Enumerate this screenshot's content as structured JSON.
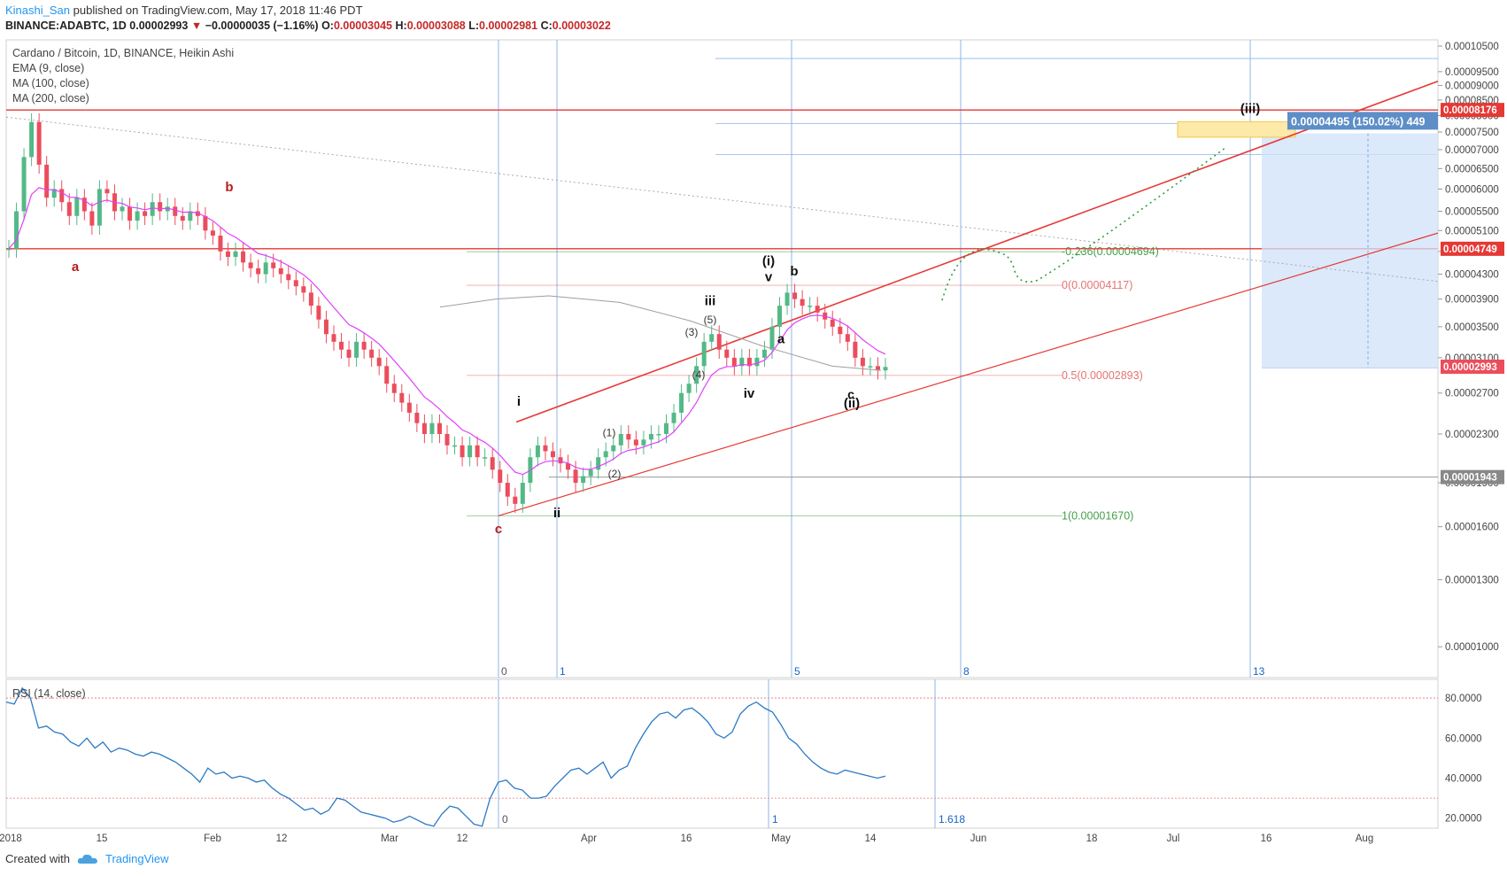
{
  "header": {
    "author": "Kinashi_San",
    "published": "published on TradingView.com, May 17, 2018 11:46 PDT",
    "symbol": "BINANCE:ADABTC, 1D",
    "last": "0.00002993",
    "arrow": "▼",
    "change": "−0.00000035 (−1.16%)",
    "o_label": "O:",
    "o_value": "0.00003045",
    "h_label": "H:",
    "h_value": "0.00003088",
    "l_label": "L:",
    "l_value": "0.00002981",
    "c_label": "C:",
    "c_value": "0.00003022"
  },
  "legend": {
    "title": "Cardano / Bitcoin, 1D, BINANCE, Heikin Ashi",
    "ema": "EMA (9, close)",
    "ma100": "MA (100, close)",
    "ma200": "MA (200, close)",
    "rsi": "RSI (14, close)"
  },
  "footer": {
    "created": "Created with",
    "brand": "TradingView"
  },
  "colors": {
    "up": "#53b987",
    "down": "#eb4d5c",
    "ema": "#e040fb",
    "ma": "#9e9e9e",
    "red_line": "#e53935",
    "blue_line": "#90b4e6",
    "rsi": "#2a7ac5",
    "fib_red": "#e57373",
    "fib_green": "#43a047"
  },
  "chart_data": [
    {
      "type": "candlestick",
      "style": "Heikin Ashi",
      "title": "Cardano / Bitcoin, 1D, BINANCE, Heikin Ashi",
      "ylim": [
        9.5e-06,
        0.000105
      ],
      "y_scale": "log",
      "y_ticks": [
        "0.00010500",
        "0.00009500",
        "0.00009000",
        "0.00008500",
        "0.00008000",
        "0.00007500",
        "0.00007000",
        "0.00006500",
        "0.00006000",
        "0.00005500",
        "0.00005100",
        "0.00004700",
        "0.00004300",
        "0.00003900",
        "0.00003500",
        "0.00003100",
        "0.00002700",
        "0.00002300",
        "0.00001900",
        "0.00001600",
        "0.00001300",
        "0.00001000"
      ],
      "x_ticks": [
        "2018",
        "15",
        "Feb",
        "12",
        "Mar",
        "12",
        "Apr",
        "16",
        "May",
        "14",
        "Jun",
        "18",
        "Jul",
        "16",
        "Aug"
      ],
      "price_badges": [
        {
          "label": "0.00008176",
          "value": 8.176e-05,
          "color": "#e53935"
        },
        {
          "label": "0.00004749",
          "value": 4.749e-05,
          "color": "#e53935"
        },
        {
          "label": "0.00002993",
          "value": 2.993e-05,
          "color": "#eb4d5c"
        },
        {
          "label": "0.00001943",
          "value": 1.943e-05,
          "color": "#888888"
        }
      ],
      "fib_levels": [
        {
          "label": "-0.236(0.00004694)",
          "value": 4.694e-05,
          "color": "#43a047"
        },
        {
          "label": "0(0.00004117)",
          "value": 4.117e-05,
          "color": "#e57373"
        },
        {
          "label": "0.5(0.00002893)",
          "value": 2.893e-05,
          "color": "#e57373"
        },
        {
          "label": "1(0.00001670)",
          "value": 1.67e-05,
          "color": "#43a047"
        }
      ],
      "fib_time": [
        "0",
        "1",
        "5",
        "8",
        "13"
      ],
      "target_label": "0.00004495 (150.02%) 449",
      "wave_labels": {
        "red": [
          "a",
          "b",
          "c"
        ],
        "black": [
          "i",
          "ii",
          "iii",
          "iv",
          "v",
          "(i)",
          "b",
          "a",
          "c",
          "(ii)",
          "(iii)"
        ],
        "minor": [
          "(1)",
          "(2)",
          "(3)",
          "(4)",
          "(5)"
        ]
      },
      "closes": [
        4.75e-05,
        5.5e-05,
        6.8e-05,
        7.8e-05,
        6.6e-05,
        5.8e-05,
        6e-05,
        5.7e-05,
        5.4e-05,
        5.8e-05,
        5.5e-05,
        5.2e-05,
        6e-05,
        5.9e-05,
        5.5e-05,
        5.6e-05,
        5.3e-05,
        5.5e-05,
        5.4e-05,
        5.7e-05,
        5.5e-05,
        5.6e-05,
        5.4e-05,
        5.3e-05,
        5.5e-05,
        5.4e-05,
        5.1e-05,
        5e-05,
        4.7e-05,
        4.6e-05,
        4.7e-05,
        4.5e-05,
        4.4e-05,
        4.3e-05,
        4.5e-05,
        4.4e-05,
        4.3e-05,
        4.2e-05,
        4.1e-05,
        4e-05,
        3.8e-05,
        3.6e-05,
        3.4e-05,
        3.3e-05,
        3.2e-05,
        3.1e-05,
        3.3e-05,
        3.2e-05,
        3.1e-05,
        3e-05,
        2.8e-05,
        2.7e-05,
        2.6e-05,
        2.5e-05,
        2.4e-05,
        2.3e-05,
        2.4e-05,
        2.3e-05,
        2.2e-05,
        2.2e-05,
        2.1e-05,
        2.2e-05,
        2.1e-05,
        2.1e-05,
        2e-05,
        1.9e-05,
        1.8e-05,
        1.75e-05,
        1.9e-05,
        2.1e-05,
        2.2e-05,
        2.15e-05,
        2.1e-05,
        2.05e-05,
        2e-05,
        1.9e-05,
        1.95e-05,
        2e-05,
        2.1e-05,
        2.15e-05,
        2.2e-05,
        2.3e-05,
        2.25e-05,
        2.2e-05,
        2.25e-05,
        2.3e-05,
        2.3e-05,
        2.4e-05,
        2.5e-05,
        2.7e-05,
        2.8e-05,
        3e-05,
        3.3e-05,
        3.4e-05,
        3.2e-05,
        3.1e-05,
        3e-05,
        3.1e-05,
        3e-05,
        3.1e-05,
        3.2e-05,
        3.5e-05,
        3.8e-05,
        4e-05,
        3.9e-05,
        3.8e-05,
        3.8e-05,
        3.7e-05,
        3.6e-05,
        3.5e-05,
        3.4e-05,
        3.3e-05,
        3.1e-05,
        3e-05,
        3e-05,
        2.95e-05,
        2.99e-05
      ]
    },
    {
      "type": "line",
      "title": "RSI (14, close)",
      "ylim": [
        15,
        88
      ],
      "y_ticks": [
        "80.0000",
        "60.0000",
        "40.0000",
        "20.0000"
      ],
      "bands": [
        30,
        80
      ],
      "fib_time": [
        "0",
        "1",
        "1.618"
      ],
      "values": [
        78,
        77,
        85,
        80,
        65,
        66,
        63,
        62,
        58,
        56,
        60,
        55,
        58,
        53,
        55,
        54,
        52,
        51,
        53,
        52,
        50,
        48,
        45,
        42,
        38,
        45,
        42,
        43,
        40,
        41,
        40,
        38,
        39,
        35,
        32,
        30,
        27,
        24,
        25,
        22,
        24,
        30,
        29,
        26,
        23,
        22,
        21,
        20,
        18,
        19,
        21,
        19,
        17,
        16,
        22,
        26,
        25,
        21,
        17,
        16,
        30,
        38,
        39,
        35,
        34,
        30,
        30,
        31,
        36,
        40,
        44,
        45,
        42,
        45,
        48,
        40,
        44,
        46,
        55,
        62,
        68,
        72,
        73,
        70,
        74,
        75,
        72,
        68,
        62,
        60,
        63,
        72,
        76,
        78,
        75,
        73,
        67,
        60,
        57,
        52,
        48,
        45,
        43,
        42,
        44,
        43,
        42,
        41,
        40,
        41
      ]
    }
  ]
}
